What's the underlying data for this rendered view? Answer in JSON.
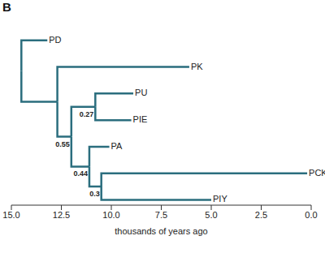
{
  "chart_data": {
    "type": "tree",
    "panel": "B",
    "xlabel": "thousands of years ago",
    "xlim": [
      15,
      0
    ],
    "xticks": [
      {
        "value": 15,
        "label": "15.0"
      },
      12.5,
      {
        "value": 10,
        "label": "10.0"
      },
      7.5,
      {
        "value": 5,
        "label": "5.0"
      },
      2.5,
      {
        "value": 0,
        "label": "0.0"
      }
    ],
    "color": "#2b6e7e",
    "tree": {
      "time": 14.5,
      "children": [
        {
          "label": "PD",
          "time": 13.2
        },
        {
          "time": 12.7,
          "children": [
            {
              "label": "PK",
              "time": 6.1
            },
            {
              "time": 12.0,
              "support": 0.55,
              "children": [
                {
                  "time": 10.8,
                  "support": 0.27,
                  "children": [
                    {
                      "label": "PU",
                      "time": 8.9
                    },
                    {
                      "label": "PIE",
                      "time": 9.0
                    }
                  ]
                },
                {
                  "time": 11.1,
                  "support": 0.44,
                  "children": [
                    {
                      "label": "PA",
                      "time": 10.1
                    },
                    {
                      "time": 10.5,
                      "support": 0.3,
                      "children": [
                        {
                          "label": "PCK",
                          "time": 0.2
                        },
                        {
                          "label": "PIY",
                          "time": 5.0
                        }
                      ]
                    }
                  ]
                }
              ]
            }
          ]
        }
      ]
    }
  }
}
